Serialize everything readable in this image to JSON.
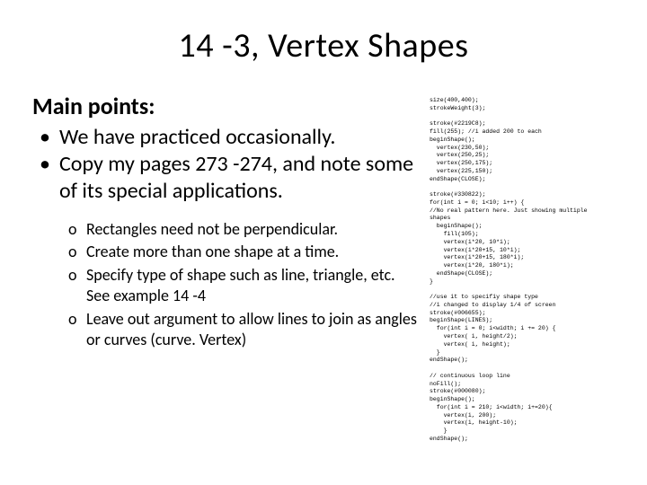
{
  "title": "14 -3, Vertex Shapes",
  "heading": "Main points:",
  "bullets": [
    "We have practiced occasionally.",
    "Copy my pages 273 -274, and note some of its special applications."
  ],
  "subs": [
    "Rectangles need not be perpendicular.",
    "Create more than one shape at a time.",
    "Specify type of shape such as line, triangle, etc. See example 14 -4",
    "Leave out argument to allow lines to join as angles or curves (curve. Vertex)"
  ],
  "code": "size(400,400);\nstrokeWeight(3);\n\nstroke(#2219C8);\nfill(255); //i added 200 to each\nbeginShape();\n  vertex(230,50);\n  vertex(250,25);\n  vertex(250,175);\n  vertex(225,150);\nendShape(CLOSE);\n\nstroke(#330822);\nfor(int i = 0; i<10; i++) {\n//No real pattern here. Just showing multiple\nshapes\n  beginShape();\n    fill(105);\n    vertex(i*20, 10*i);\n    vertex(i*20+15, 10*i);\n    vertex(i*20+15, 180*i);\n    vertex(i*20, 180*i);\n  endShape(CLOSE);\n}\n\n//use it to specifiy shape type\n//i changed to display 1/4 of screen\nstroke(#006655);\nbeginShape(LINES);\n  for(int i = 0; i<width; i += 20) {\n    vertex( i, height/2);\n    vertex( i, height);\n  }\nendShape();\n\n// continuous loop line\nnoFill();\nstroke(#000080);\nbeginShape();\n  for(int i = 210; i<width; i+=20){\n    vertex(i, 200);\n    vertex(i, height-10);\n    }\nendShape();"
}
